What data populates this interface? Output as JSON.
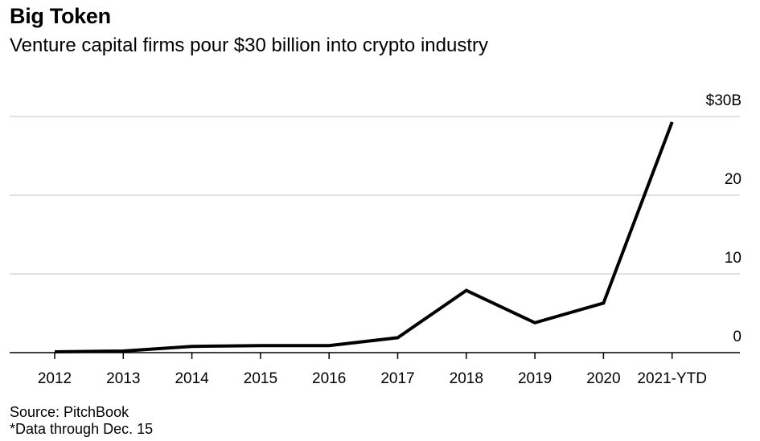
{
  "header": {
    "title": "Big Token",
    "subtitle": "Venture capital firms pour $30 billion into crypto industry"
  },
  "footer": {
    "source": "Source: PitchBook",
    "note": "*Data through Dec. 15"
  },
  "colors": {
    "line": "#000000",
    "grid": "#d9d9d9",
    "axis": "#000000"
  },
  "chart_data": {
    "type": "line",
    "title": "Big Token",
    "subtitle": "Venture capital firms pour $30 billion into crypto industry",
    "xlabel": "",
    "ylabel": "",
    "categories": [
      "2012",
      "2013",
      "2014",
      "2015",
      "2016",
      "2017",
      "2018",
      "2019",
      "2020",
      "2021-YTD"
    ],
    "series": [
      {
        "values": [
          0.1,
          0.2,
          0.8,
          0.9,
          0.9,
          1.9,
          7.9,
          3.8,
          6.3,
          29.3
        ]
      }
    ],
    "ylim": [
      0,
      30
    ],
    "yticks": [
      {
        "value": 0,
        "label": "0"
      },
      {
        "value": 10,
        "label": "10"
      },
      {
        "value": 20,
        "label": "20"
      },
      {
        "value": 30,
        "label": "$30B"
      }
    ],
    "y_axis_position": "right",
    "grid": true,
    "legend": "none"
  }
}
